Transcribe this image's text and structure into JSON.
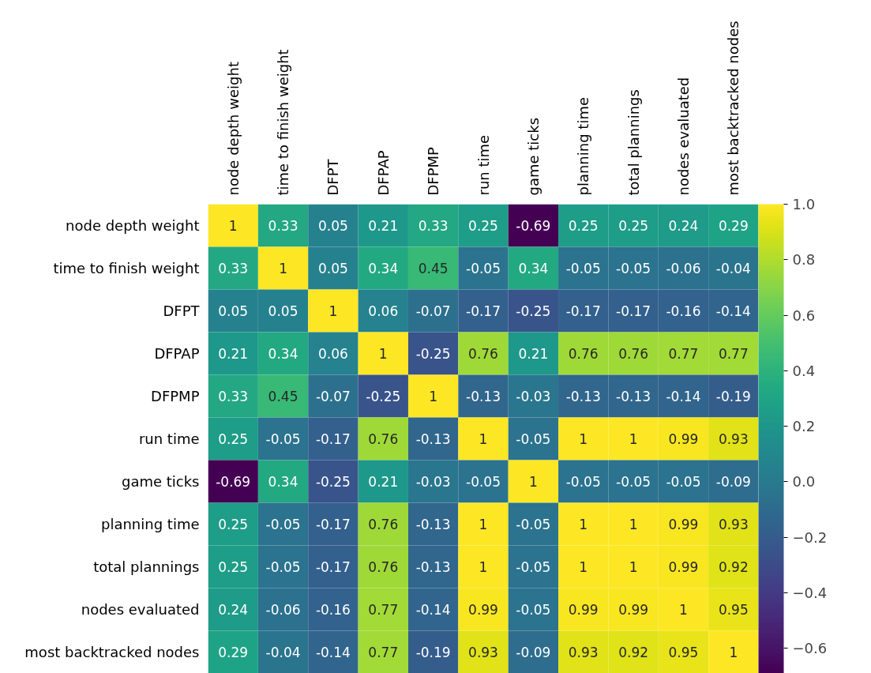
{
  "chart_data": {
    "type": "heatmap",
    "categories": [
      "node depth weight",
      "time to finish weight",
      "DFPT",
      "DFPAP",
      "DFPMP",
      "run time",
      "game ticks",
      "planning time",
      "total plannings",
      "nodes evaluated",
      "most backtracked nodes"
    ],
    "y_categories": [
      "node depth weight",
      "time to finish weight",
      "DFPT",
      "DFPAP",
      "DFPMP",
      "run time",
      "game ticks",
      "planning time",
      "total plannings",
      "nodes evaluated",
      "most backtracked nodes"
    ],
    "cells": [
      [
        1,
        0.33,
        0.05,
        0.21,
        0.33,
        0.25,
        -0.69,
        0.25,
        0.25,
        0.24,
        0.29
      ],
      [
        0.33,
        1,
        0.05,
        0.34,
        0.45,
        -0.05,
        0.34,
        -0.05,
        -0.05,
        -0.06,
        -0.04
      ],
      [
        0.05,
        0.05,
        1,
        0.06,
        -0.07,
        -0.17,
        -0.25,
        -0.17,
        -0.17,
        -0.16,
        -0.14
      ],
      [
        0.21,
        0.34,
        0.06,
        1,
        -0.25,
        0.76,
        0.21,
        0.76,
        0.76,
        0.77,
        0.77
      ],
      [
        0.33,
        0.45,
        -0.07,
        -0.25,
        1,
        -0.13,
        -0.03,
        -0.13,
        -0.13,
        -0.14,
        -0.19
      ],
      [
        0.25,
        -0.05,
        -0.17,
        0.76,
        -0.13,
        1,
        -0.05,
        1,
        1,
        0.99,
        0.93
      ],
      [
        -0.69,
        0.34,
        -0.25,
        0.21,
        -0.03,
        -0.05,
        1,
        -0.05,
        -0.05,
        -0.05,
        -0.09
      ],
      [
        0.25,
        -0.05,
        -0.17,
        0.76,
        -0.13,
        1,
        -0.05,
        1,
        1,
        0.99,
        0.93
      ],
      [
        0.25,
        -0.05,
        -0.17,
        0.76,
        -0.13,
        1,
        -0.05,
        1,
        1,
        0.99,
        0.92
      ],
      [
        0.24,
        -0.06,
        -0.16,
        0.77,
        -0.14,
        0.99,
        -0.05,
        0.99,
        0.99,
        1,
        0.95
      ],
      [
        0.29,
        -0.04,
        -0.14,
        0.77,
        -0.19,
        0.93,
        -0.09,
        0.93,
        0.92,
        0.95,
        1
      ]
    ],
    "clim": [
      -0.69,
      1
    ],
    "cticks": [
      {
        "value": -0.6,
        "label": "−0.6"
      },
      {
        "value": -0.4,
        "label": "−0.4"
      },
      {
        "value": -0.2,
        "label": "−0.2"
      },
      {
        "value": 0,
        "label": "0.0"
      },
      {
        "value": 0.2,
        "label": "0.2"
      },
      {
        "value": 0.4,
        "label": "0.4"
      },
      {
        "value": 0.6,
        "label": "0.6"
      },
      {
        "value": 0.8,
        "label": "0.8"
      },
      {
        "value": 1,
        "label": "1.0"
      }
    ],
    "data_labels": true,
    "grid": false
  }
}
